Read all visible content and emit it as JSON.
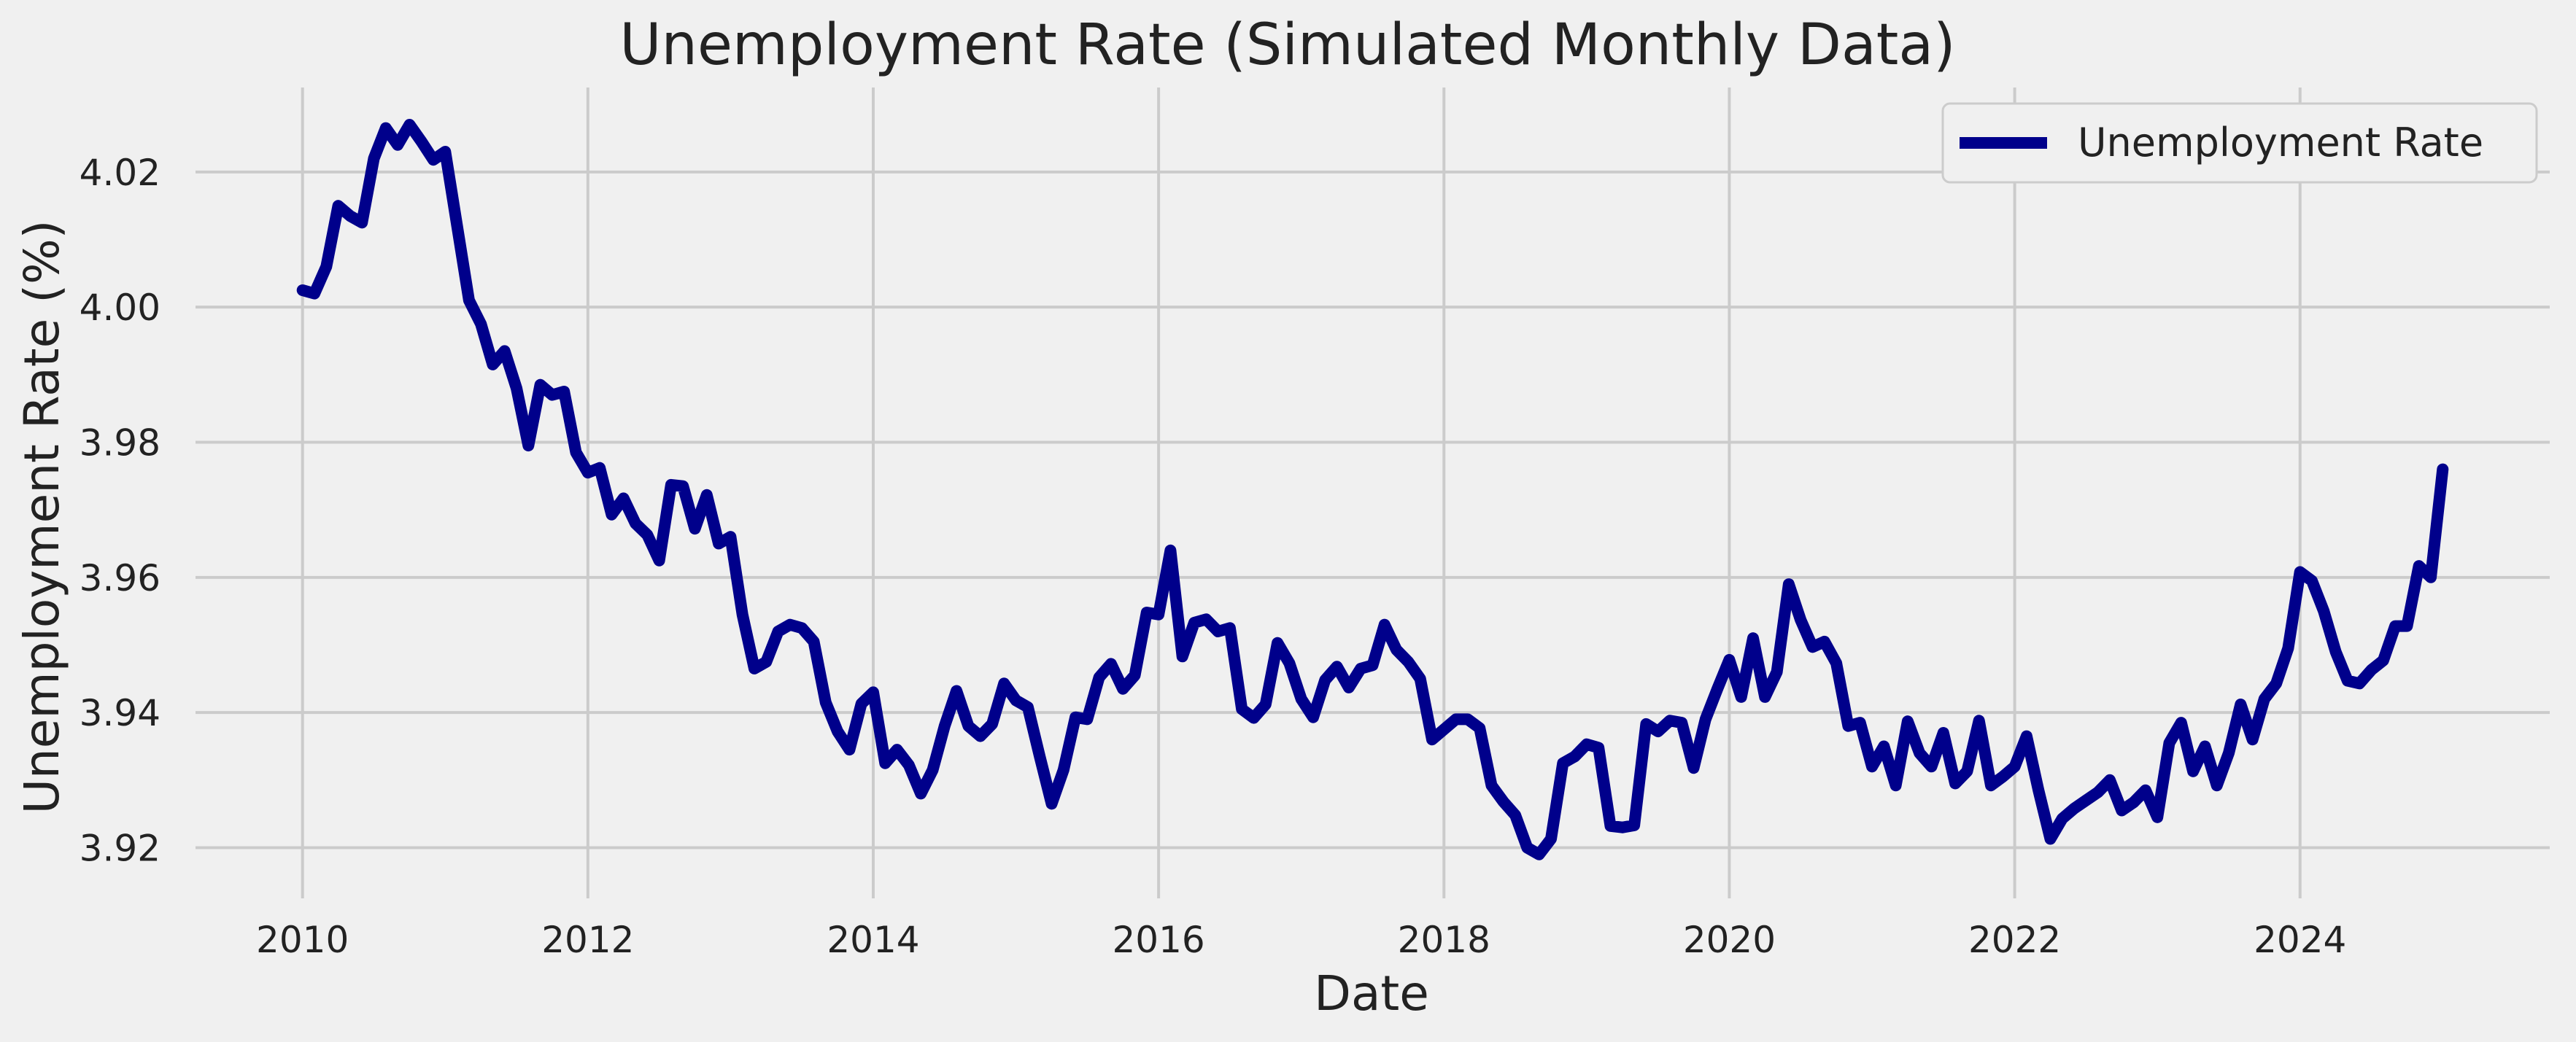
{
  "chart_data": {
    "type": "line",
    "title": "Unemployment Rate (Simulated Monthly Data)",
    "xlabel": "Date",
    "ylabel": "Unemployment Rate (%)",
    "xlim": [
      2009.25,
      2025.75
    ],
    "ylim": [
      3.9125,
      4.0325
    ],
    "x_ticks": [
      2010,
      2012,
      2014,
      2016,
      2018,
      2020,
      2022,
      2024
    ],
    "x_tick_labels": [
      "2010",
      "2012",
      "2014",
      "2016",
      "2018",
      "2020",
      "2022",
      "2024"
    ],
    "y_ticks": [
      3.92,
      3.94,
      3.96,
      3.98,
      4.0,
      4.02
    ],
    "y_tick_labels": [
      "3.92",
      "3.94",
      "3.96",
      "3.98",
      "4.00",
      "4.02"
    ],
    "grid": true,
    "legend": {
      "position": "top-right",
      "entries": [
        "Unemployment Rate"
      ]
    },
    "x_start": "2010-01",
    "x_step": "month",
    "series": [
      {
        "name": "Unemployment Rate",
        "color": "#00008b",
        "values": [
          4.0025,
          4.002,
          4.006,
          4.015,
          4.0135,
          4.0125,
          4.022,
          4.0265,
          4.024,
          4.027,
          4.0245,
          4.0218,
          4.023,
          4.012,
          4.001,
          3.9975,
          3.9915,
          3.9935,
          3.988,
          3.9795,
          3.9885,
          3.987,
          3.9875,
          3.9785,
          3.9755,
          3.9762,
          3.9693,
          3.9717,
          3.968,
          3.9663,
          3.9625,
          3.9737,
          3.9735,
          3.9672,
          3.9722,
          3.965,
          3.966,
          3.9545,
          3.9465,
          3.9475,
          3.952,
          3.953,
          3.9525,
          3.9505,
          3.9415,
          3.9372,
          3.9345,
          3.9413,
          3.943,
          3.9325,
          3.9345,
          3.9322,
          3.928,
          3.9315,
          3.938,
          3.9432,
          3.938,
          3.9365,
          3.9383,
          3.9443,
          3.9418,
          3.9408,
          3.9335,
          3.9265,
          3.9315,
          3.9393,
          3.939,
          3.9452,
          3.9472,
          3.9435,
          3.9455,
          3.9548,
          3.9545,
          3.964,
          3.9483,
          3.9533,
          3.9538,
          3.952,
          3.9525,
          3.9405,
          3.9392,
          3.9412,
          3.9503,
          3.9473,
          3.942,
          3.9393,
          3.9448,
          3.9468,
          3.9437,
          3.9465,
          3.947,
          3.953,
          3.9493,
          3.9475,
          3.945,
          3.936,
          3.9375,
          3.939,
          3.939,
          3.9377,
          3.9292,
          3.9268,
          3.9248,
          3.92,
          3.919,
          3.9213,
          3.9325,
          3.9335,
          3.9353,
          3.9348,
          3.9232,
          3.923,
          3.9233,
          3.9383,
          3.9372,
          3.9388,
          3.9385,
          3.9318,
          3.939,
          3.9435,
          3.9478,
          3.9423,
          3.951,
          3.9423,
          3.946,
          3.959,
          3.9537,
          3.9497,
          3.9505,
          3.9473,
          3.938,
          3.9385,
          3.932,
          3.935,
          3.9292,
          3.9387,
          3.934,
          3.932,
          3.937,
          3.9295,
          3.9313,
          3.9388,
          3.9292,
          3.9305,
          3.932,
          3.9365,
          3.9285,
          3.9213,
          3.9243,
          3.9258,
          3.927,
          3.9282,
          3.93,
          3.9255,
          3.9267,
          3.9285,
          3.9245,
          3.9355,
          3.9385,
          3.9313,
          3.935,
          3.9292,
          3.934,
          3.9412,
          3.936,
          3.942,
          3.9443,
          3.9495,
          3.9608,
          3.9595,
          3.955,
          3.949,
          3.9447,
          3.9443,
          3.9463,
          3.9477,
          3.9528,
          3.9528,
          3.9617,
          3.96,
          3.976
        ]
      }
    ]
  }
}
